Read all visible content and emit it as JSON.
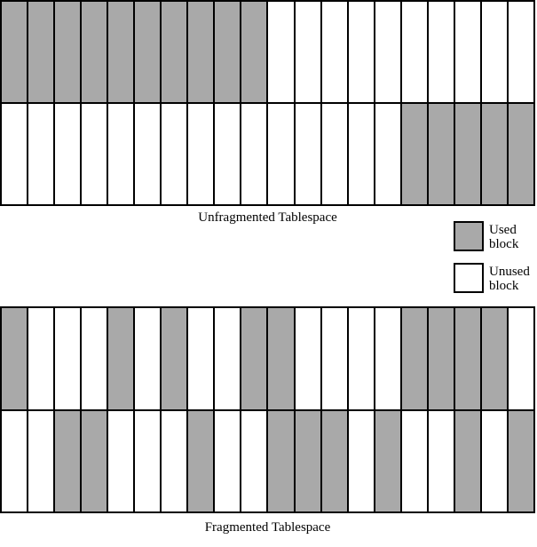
{
  "colors": {
    "used": "#a9a9a9",
    "unused": "#ffffff",
    "line": "#000000",
    "background": "#ffffff"
  },
  "legend": {
    "used_label": "Used block",
    "unused_label": "Unused block"
  },
  "block_encoding": {
    "1": "used",
    "0": "unused"
  },
  "diagrams": [
    {
      "caption": "Unfragmented Tablespace",
      "columns": 20,
      "rows": [
        [
          1,
          1,
          1,
          1,
          1,
          1,
          1,
          1,
          1,
          1,
          0,
          0,
          0,
          0,
          0,
          0,
          0,
          0,
          0,
          0
        ],
        [
          0,
          0,
          0,
          0,
          0,
          0,
          0,
          0,
          0,
          0,
          0,
          0,
          0,
          0,
          0,
          1,
          1,
          1,
          1,
          1
        ]
      ]
    },
    {
      "caption": "Fragmented Tablespace",
      "columns": 20,
      "rows": [
        [
          1,
          0,
          0,
          0,
          1,
          0,
          1,
          0,
          0,
          1,
          1,
          0,
          0,
          0,
          0,
          1,
          1,
          1,
          1,
          0
        ],
        [
          0,
          0,
          1,
          1,
          0,
          0,
          0,
          1,
          0,
          0,
          1,
          1,
          1,
          0,
          1,
          0,
          0,
          1,
          0,
          1
        ]
      ]
    }
  ]
}
